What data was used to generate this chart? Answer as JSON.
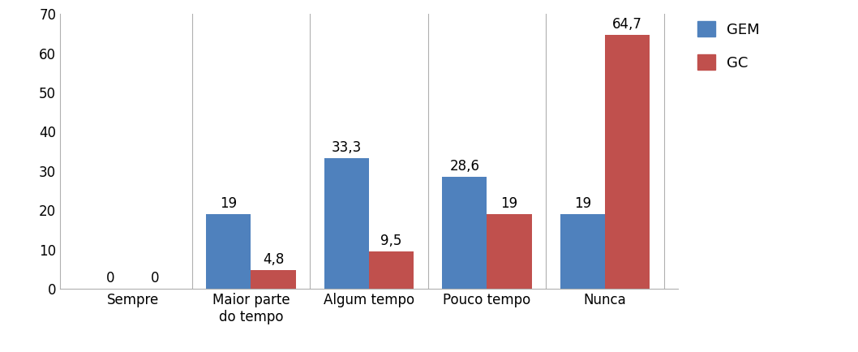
{
  "categories": [
    "Sempre",
    "Maior parte\ndo tempo",
    "Algum tempo",
    "Pouco tempo",
    "Nunca"
  ],
  "gem_values": [
    0,
    19,
    33.3,
    28.6,
    19
  ],
  "gc_values": [
    0,
    4.8,
    9.5,
    19,
    64.7
  ],
  "gem_color": "#4f81bd",
  "gc_color": "#c0504d",
  "bar_width": 0.38,
  "ylim": [
    0,
    70
  ],
  "yticks": [
    0,
    10,
    20,
    30,
    40,
    50,
    60,
    70
  ],
  "legend_labels": [
    "GEM",
    "GC"
  ],
  "tick_fontsize": 12,
  "legend_fontsize": 13,
  "value_fontsize": 12,
  "background_color": "#ffffff",
  "divider_color": "#b0b0b0"
}
